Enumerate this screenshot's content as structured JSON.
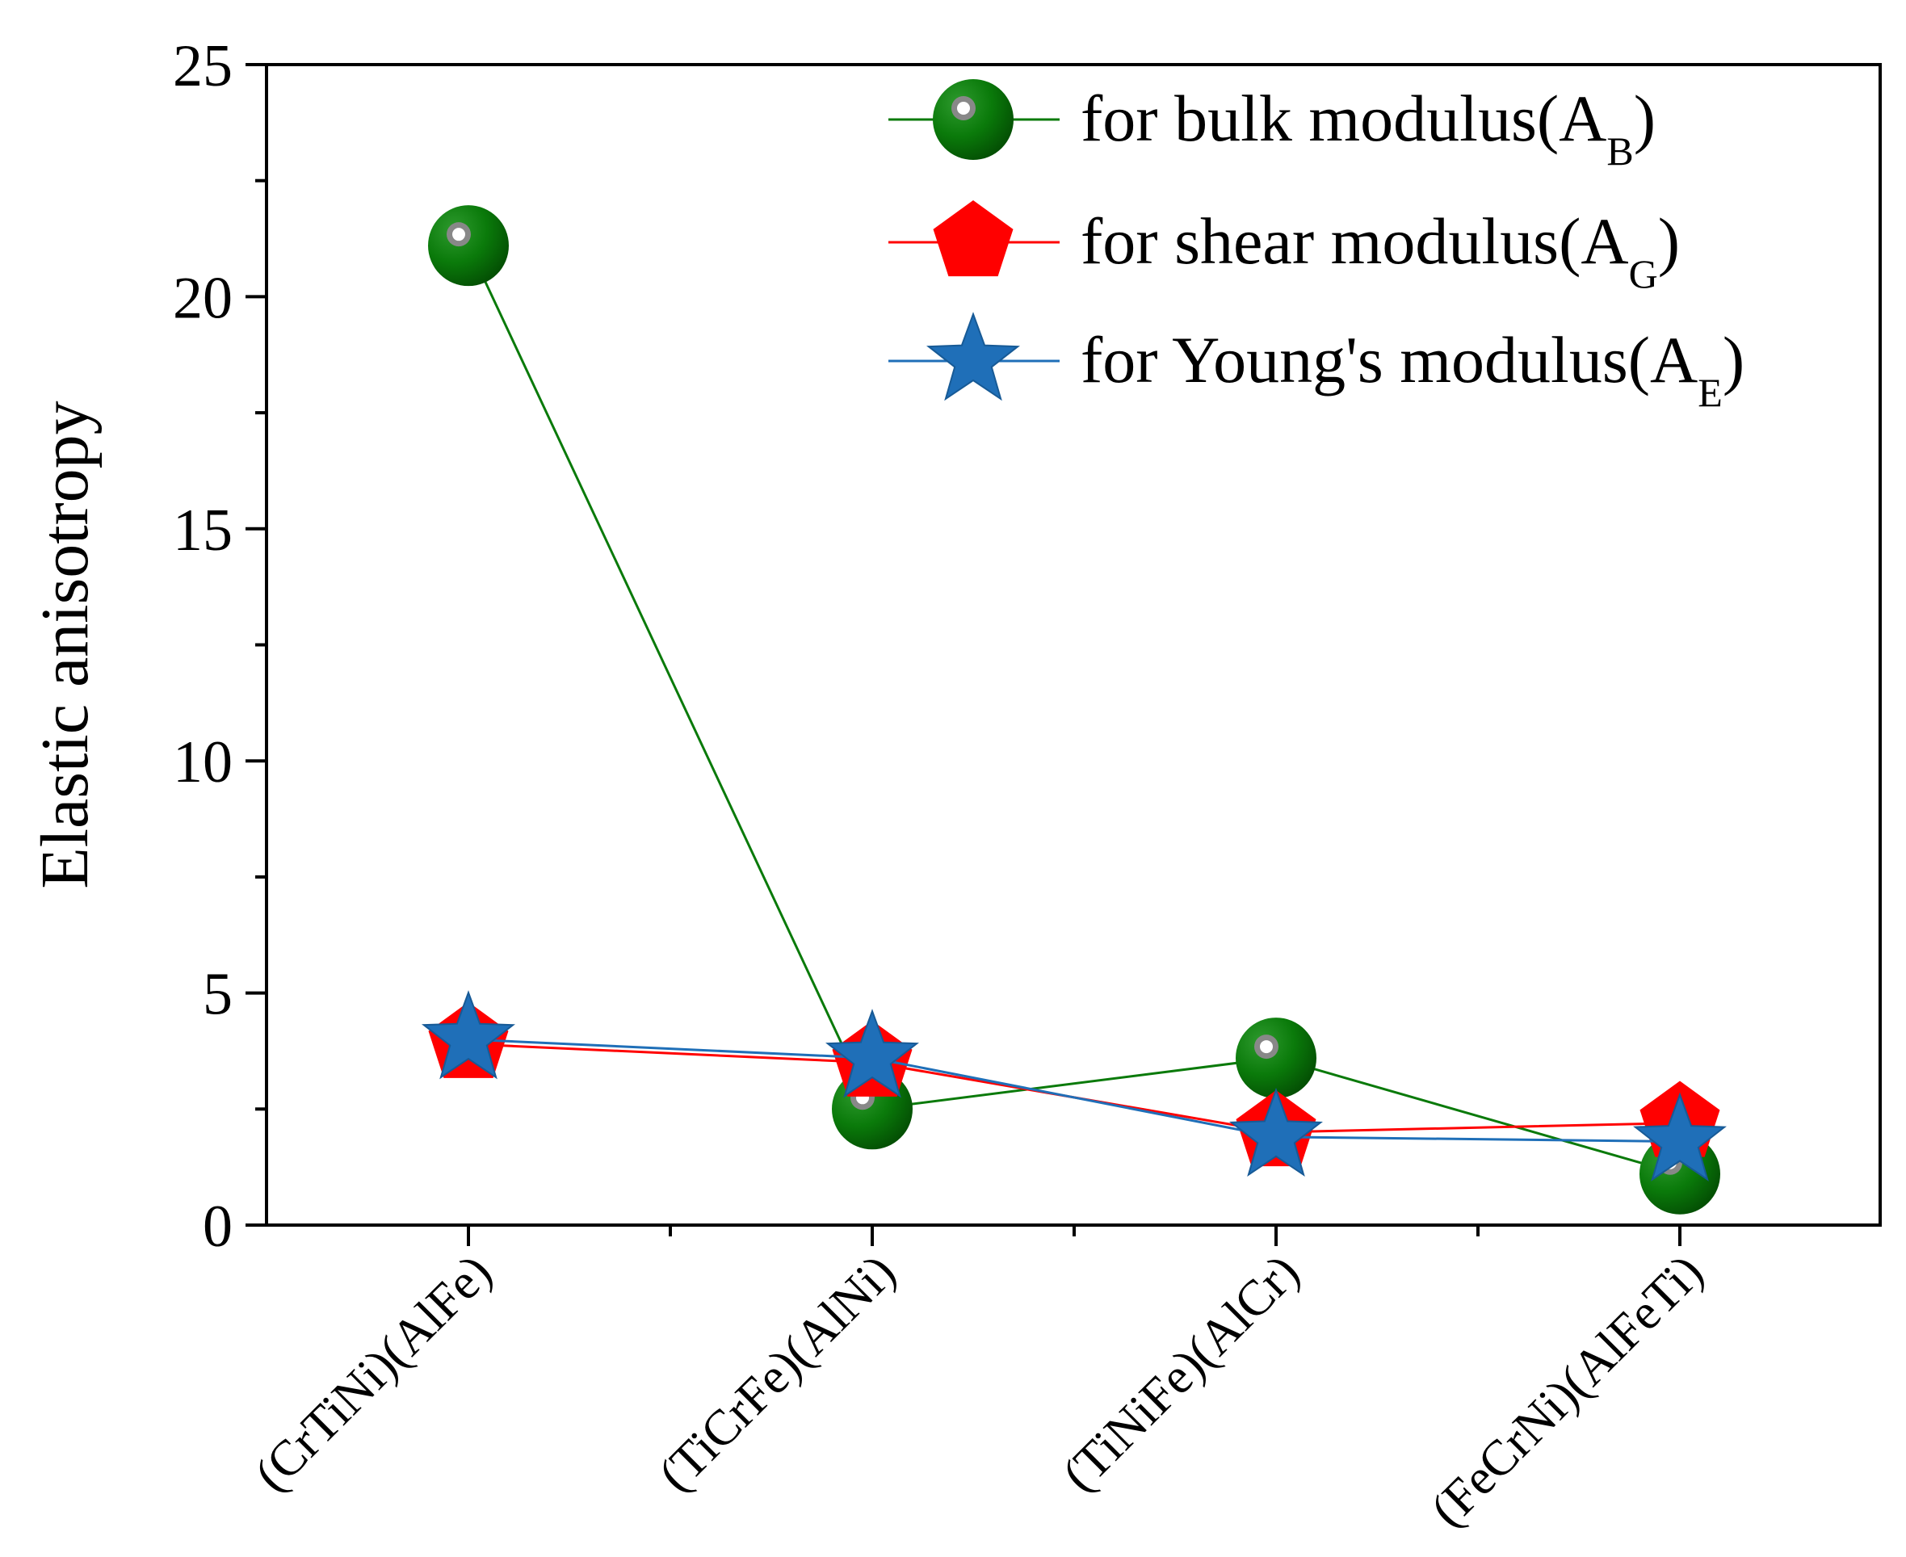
{
  "chart_data": {
    "type": "line",
    "title": "",
    "xlabel": "",
    "ylabel": "Elastic anisotropy",
    "ylim": [
      0,
      25
    ],
    "yticks": [
      0,
      5,
      10,
      15,
      20,
      25
    ],
    "yticks_text": [
      "0",
      "5",
      "10",
      "15",
      "20",
      "25"
    ],
    "categories": [
      "(CrTiNi)(AlFe)",
      "(TiCrFe)(AlNi)",
      "(TiNiFe)(AlCr)",
      "(FeCrNi)(AlFeTi)"
    ],
    "legend_position": "top-right",
    "series": [
      {
        "name": "for bulk modulus(A",
        "sub": "B",
        "marker": "sphere",
        "color": "#0a7a0a",
        "values": [
          21.1,
          2.5,
          3.6,
          1.1
        ]
      },
      {
        "name": "for shear modulus(A",
        "sub": "G",
        "marker": "pentagon",
        "color": "#ff0000",
        "values": [
          3.9,
          3.5,
          2.0,
          2.2
        ]
      },
      {
        "name": " for Young's modulus(A",
        "sub": "E",
        "marker": "star",
        "color": "#1f6fb8",
        "values": [
          4.0,
          3.6,
          1.9,
          1.8
        ]
      }
    ]
  }
}
